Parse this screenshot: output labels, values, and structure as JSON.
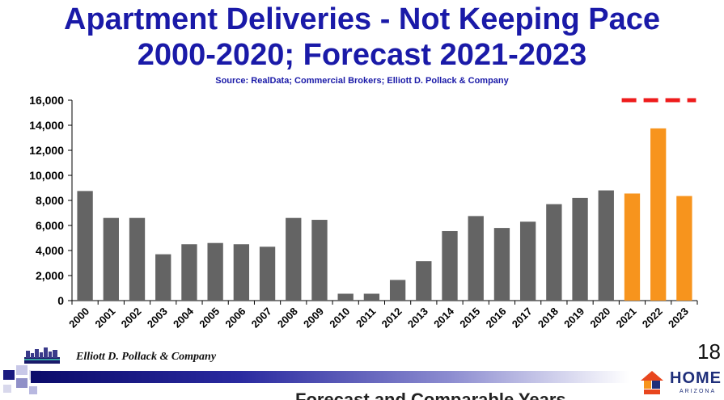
{
  "header": {
    "title_line1": "Apartment Deliveries - Not Keeping Pace",
    "title_line2": "2000-2020; Forecast 2021-2023",
    "source": "Source: RealData; Commercial Brokers; Elliott D. Pollack & Company"
  },
  "chart_data": {
    "type": "bar",
    "categories": [
      "2000",
      "2001",
      "2002",
      "2003",
      "2004",
      "2005",
      "2006",
      "2007",
      "2008",
      "2009",
      "2010",
      "2011",
      "2012",
      "2013",
      "2014",
      "2015",
      "2016",
      "2017",
      "2018",
      "2019",
      "2020",
      "2021",
      "2022",
      "2023"
    ],
    "values": [
      8750,
      6600,
      6600,
      3700,
      4500,
      4600,
      4500,
      4300,
      6600,
      6450,
      550,
      550,
      1650,
      3150,
      5550,
      6750,
      5800,
      6300,
      7700,
      8200,
      8800,
      8550,
      13750,
      8350
    ],
    "forecast_start_index": 21,
    "ylim": [
      0,
      16000
    ],
    "yticks": [
      0,
      2000,
      4000,
      6000,
      8000,
      10000,
      12000,
      14000,
      16000
    ],
    "ytick_labels": [
      "0",
      "2,000",
      "4,000",
      "6,000",
      "8,000",
      "10,000",
      "12,000",
      "14,000",
      "16,000"
    ],
    "reference_line": {
      "value": 16000,
      "from_index": 21,
      "to_index": 23,
      "style": "dashed",
      "color": "#ee1c1c"
    },
    "colors": {
      "actual": "#646464",
      "forecast": "#f7941d",
      "grid": "#000000"
    },
    "grid": false,
    "xlabel": "",
    "ylabel": ""
  },
  "footer": {
    "company": "Elliott D. Pollack & Company",
    "slide_number": "18",
    "logo_text": "HOME",
    "logo_subtext": "ARIZONA",
    "cut_text": "Forecast and Comparable Years"
  }
}
